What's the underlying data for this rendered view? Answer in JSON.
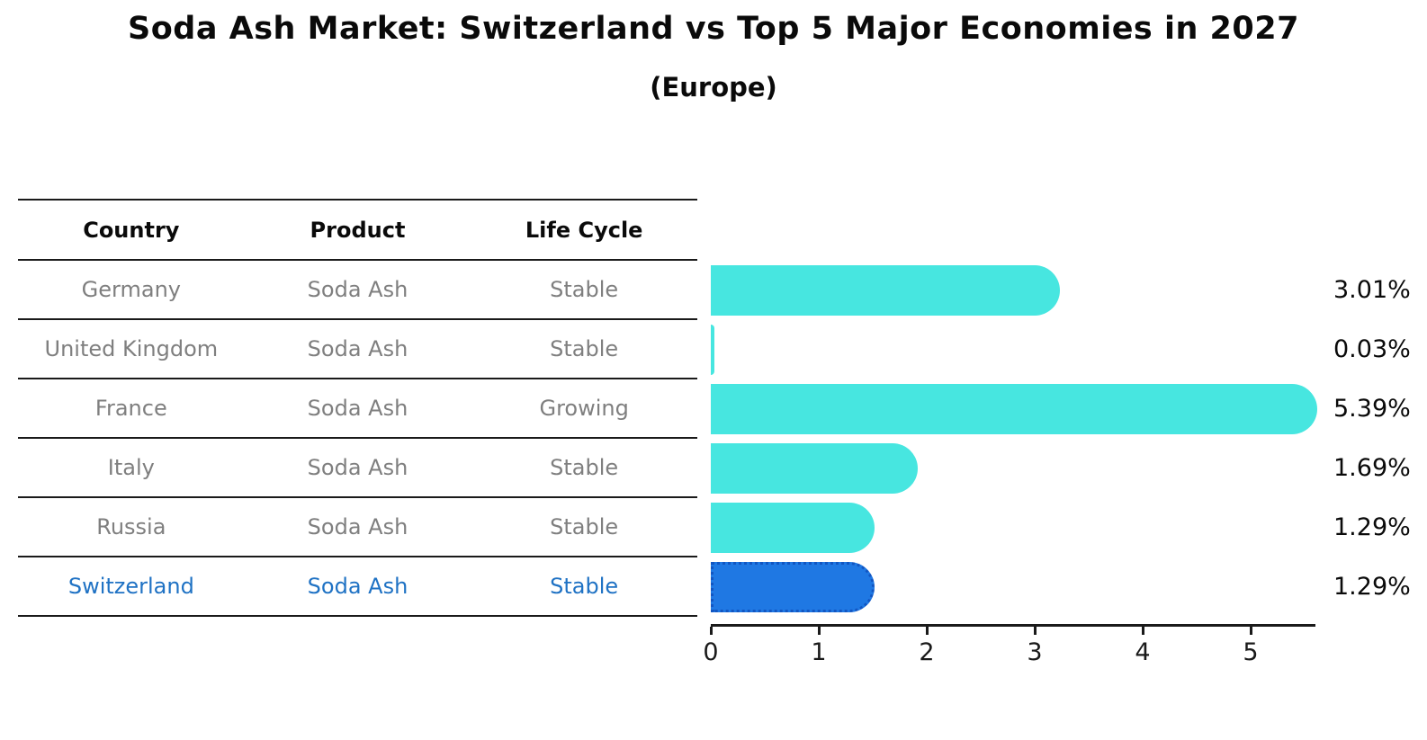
{
  "title": "Soda Ash Market: Switzerland vs Top 5 Major Economies in 2027",
  "subtitle": "(Europe)",
  "table": {
    "headers": [
      "Country",
      "Product",
      "Life Cycle"
    ],
    "rows": [
      {
        "country": "Germany",
        "product": "Soda Ash",
        "life_cycle": "Stable",
        "highlight": false
      },
      {
        "country": "United Kingdom",
        "product": "Soda Ash",
        "life_cycle": "Stable",
        "highlight": false
      },
      {
        "country": "France",
        "product": "Soda Ash",
        "life_cycle": "Growing",
        "highlight": false
      },
      {
        "country": "Italy",
        "product": "Soda Ash",
        "life_cycle": "Stable",
        "highlight": false
      },
      {
        "country": "Russia",
        "product": "Soda Ash",
        "life_cycle": "Stable",
        "highlight": false
      },
      {
        "country": "Switzerland",
        "product": "Soda Ash",
        "life_cycle": "Stable",
        "highlight": true
      }
    ]
  },
  "chart_data": {
    "type": "bar",
    "orientation": "horizontal",
    "title": "Soda Ash Market: Switzerland vs Top 5 Major Economies in 2027",
    "subtitle": "(Europe)",
    "categories": [
      "Germany",
      "United Kingdom",
      "France",
      "Italy",
      "Russia",
      "Switzerland"
    ],
    "values": [
      3.01,
      0.03,
      5.39,
      1.69,
      1.29,
      1.29
    ],
    "value_labels": [
      "3.01%",
      "0.03%",
      "5.39%",
      "1.69%",
      "1.29%",
      "1.29%"
    ],
    "xlabel": "",
    "ylabel": "",
    "xlim": [
      0,
      5.6
    ],
    "x_ticks": [
      0,
      1,
      2,
      3,
      4,
      5
    ],
    "grid": false,
    "legend": false,
    "highlight_index": 5
  },
  "colors": {
    "bar": "#47E6E0",
    "highlight_bar": "#1F78E3",
    "highlight_border": "#1256C2",
    "highlight_text": "#1F72C4",
    "muted_text": "#7F7F7F",
    "text": "#0A0A0A",
    "axis": "#1A1A1A"
  }
}
